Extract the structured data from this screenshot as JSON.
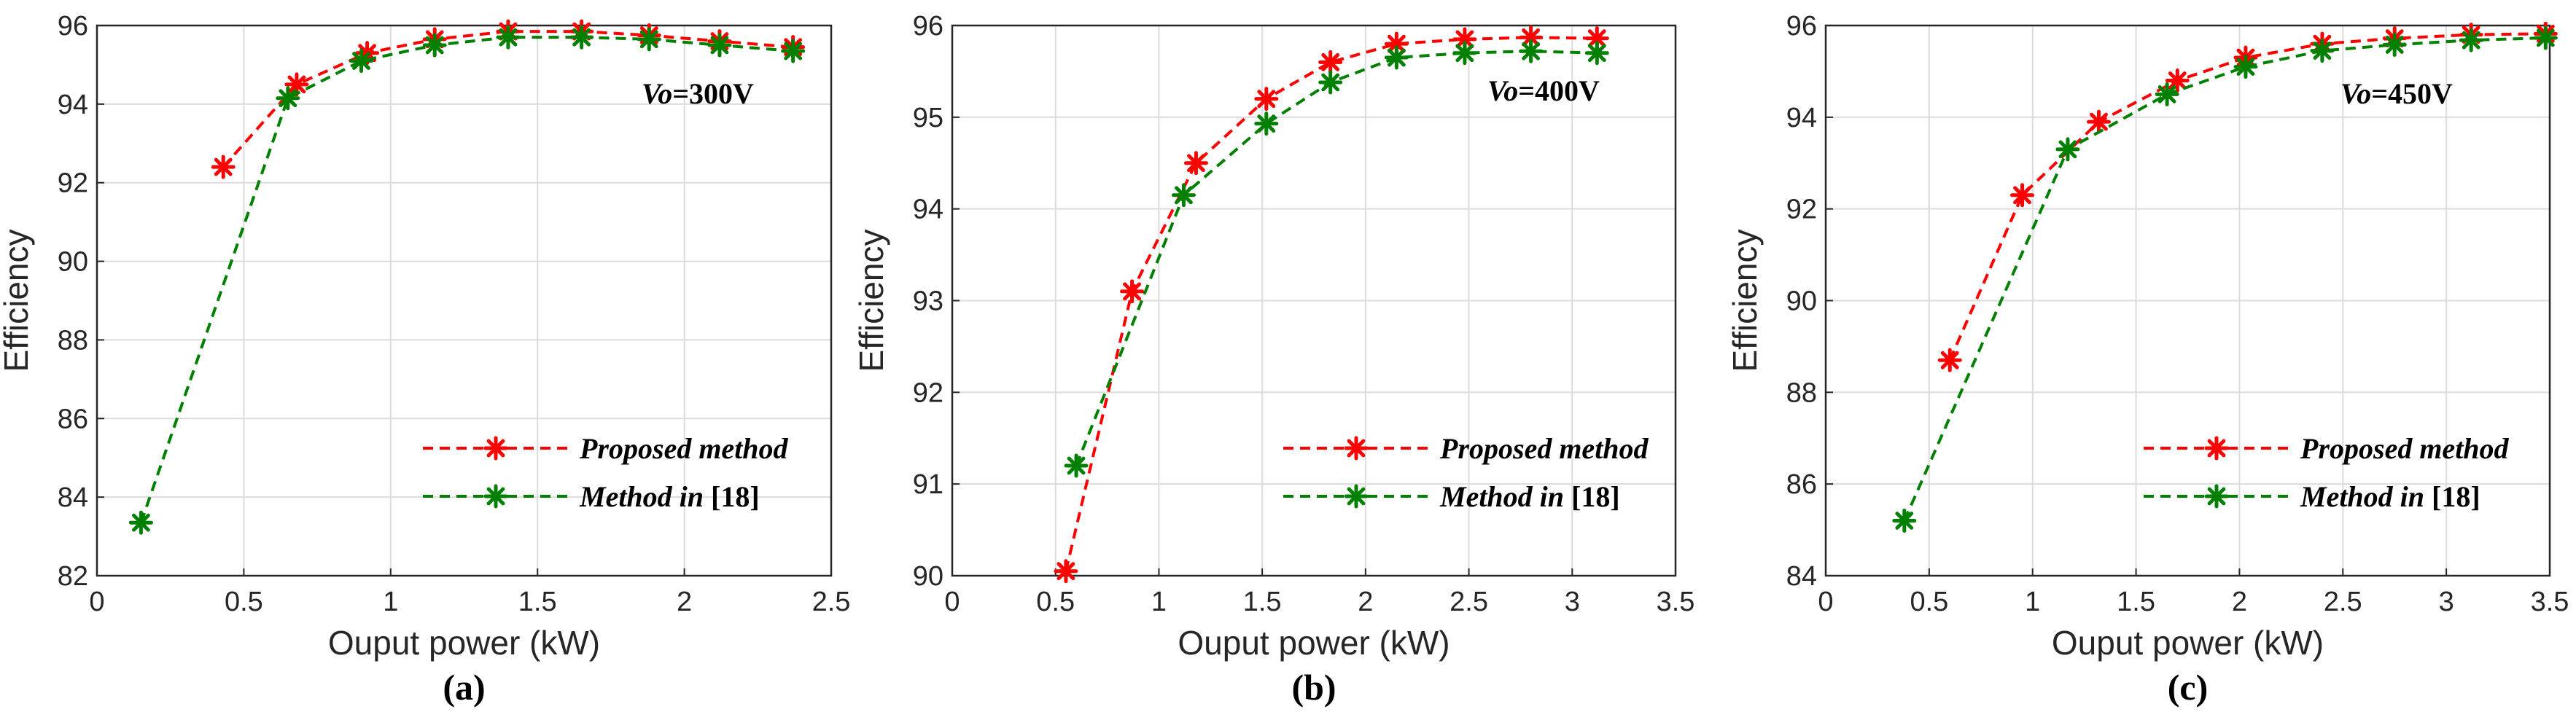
{
  "chart_data": [
    {
      "type": "line",
      "caption": "(a)",
      "xlabel": "Ouput power (kW)",
      "ylabel": "Efficiency",
      "xlim": [
        0,
        2.5
      ],
      "ylim": [
        82,
        96
      ],
      "xticks": [
        "0",
        "0.5",
        "1",
        "1.5",
        "2",
        "2.5"
      ],
      "yticks": [
        "82",
        "84",
        "86",
        "88",
        "90",
        "92",
        "94",
        "96"
      ],
      "grid": true,
      "annotation": {
        "var": "Vo",
        "value": "=300V"
      },
      "legend_position": "bottom-right",
      "series": [
        {
          "name": "Proposed method",
          "name_italic": "Proposed method",
          "name_rest": "",
          "color": "#ff0000",
          "x": [
            0.43,
            0.68,
            0.92,
            1.15,
            1.4,
            1.65,
            1.88,
            2.12,
            2.37
          ],
          "y": [
            92.4,
            94.5,
            95.3,
            95.65,
            95.85,
            95.85,
            95.75,
            95.6,
            95.45
          ]
        },
        {
          "name": "Method in [18]",
          "name_italic": "Method in ",
          "name_rest": "[18]",
          "color": "#008000",
          "x": [
            0.15,
            0.65,
            0.9,
            1.15,
            1.4,
            1.65,
            1.88,
            2.12,
            2.37
          ],
          "y": [
            83.35,
            94.15,
            95.1,
            95.5,
            95.7,
            95.7,
            95.65,
            95.5,
            95.35
          ]
        }
      ]
    },
    {
      "type": "line",
      "caption": "(b)",
      "xlabel": "Ouput power (kW)",
      "ylabel": "Efficiency",
      "xlim": [
        0,
        3.5
      ],
      "ylim": [
        90,
        96
      ],
      "xticks": [
        "0",
        "0.5",
        "1",
        "1.5",
        "2",
        "2.5",
        "3",
        "3.5"
      ],
      "yticks": [
        "90",
        "91",
        "92",
        "93",
        "94",
        "95",
        "96"
      ],
      "grid": true,
      "annotation": {
        "var": "Vo",
        "value": "=400V"
      },
      "legend_position": "bottom-right",
      "series": [
        {
          "name": "Proposed method",
          "name_italic": "Proposed method",
          "name_rest": "",
          "color": "#ff0000",
          "x": [
            0.55,
            0.87,
            1.18,
            1.52,
            1.83,
            2.15,
            2.48,
            2.8,
            3.12
          ],
          "y": [
            90.05,
            93.1,
            94.5,
            95.2,
            95.6,
            95.8,
            95.85,
            95.87,
            95.86
          ]
        },
        {
          "name": "Method in [18]",
          "name_italic": "Method in ",
          "name_rest": "[18]",
          "color": "#008000",
          "x": [
            0.6,
            1.12,
            1.52,
            1.83,
            2.15,
            2.48,
            2.8,
            3.12
          ],
          "y": [
            91.2,
            94.15,
            94.93,
            95.38,
            95.65,
            95.7,
            95.72,
            95.7
          ]
        }
      ]
    },
    {
      "type": "line",
      "caption": "(c)",
      "xlabel": "Ouput power (kW)",
      "ylabel": "Efficiency",
      "xlim": [
        0,
        3.5
      ],
      "ylim": [
        84,
        96
      ],
      "xticks": [
        "0",
        "0.5",
        "1",
        "1.5",
        "2",
        "2.5",
        "3",
        "3.5"
      ],
      "yticks": [
        "84",
        "86",
        "88",
        "90",
        "92",
        "94",
        "96"
      ],
      "grid": true,
      "annotation": {
        "var": "Vo",
        "value": "=450V"
      },
      "legend_position": "bottom-right",
      "series": [
        {
          "name": "Proposed method",
          "name_italic": "Proposed method",
          "name_rest": "",
          "color": "#ff0000",
          "x": [
            0.6,
            0.95,
            1.32,
            1.7,
            2.03,
            2.4,
            2.75,
            3.12,
            3.48
          ],
          "y": [
            88.7,
            92.3,
            93.9,
            94.8,
            95.3,
            95.6,
            95.72,
            95.8,
            95.82
          ]
        },
        {
          "name": "Method in [18]",
          "name_italic": "Method in ",
          "name_rest": "[18]",
          "color": "#008000",
          "x": [
            0.38,
            1.17,
            1.65,
            2.03,
            2.4,
            2.75,
            3.12,
            3.48
          ],
          "y": [
            85.2,
            93.3,
            94.5,
            95.1,
            95.45,
            95.58,
            95.68,
            95.73
          ]
        }
      ]
    }
  ]
}
